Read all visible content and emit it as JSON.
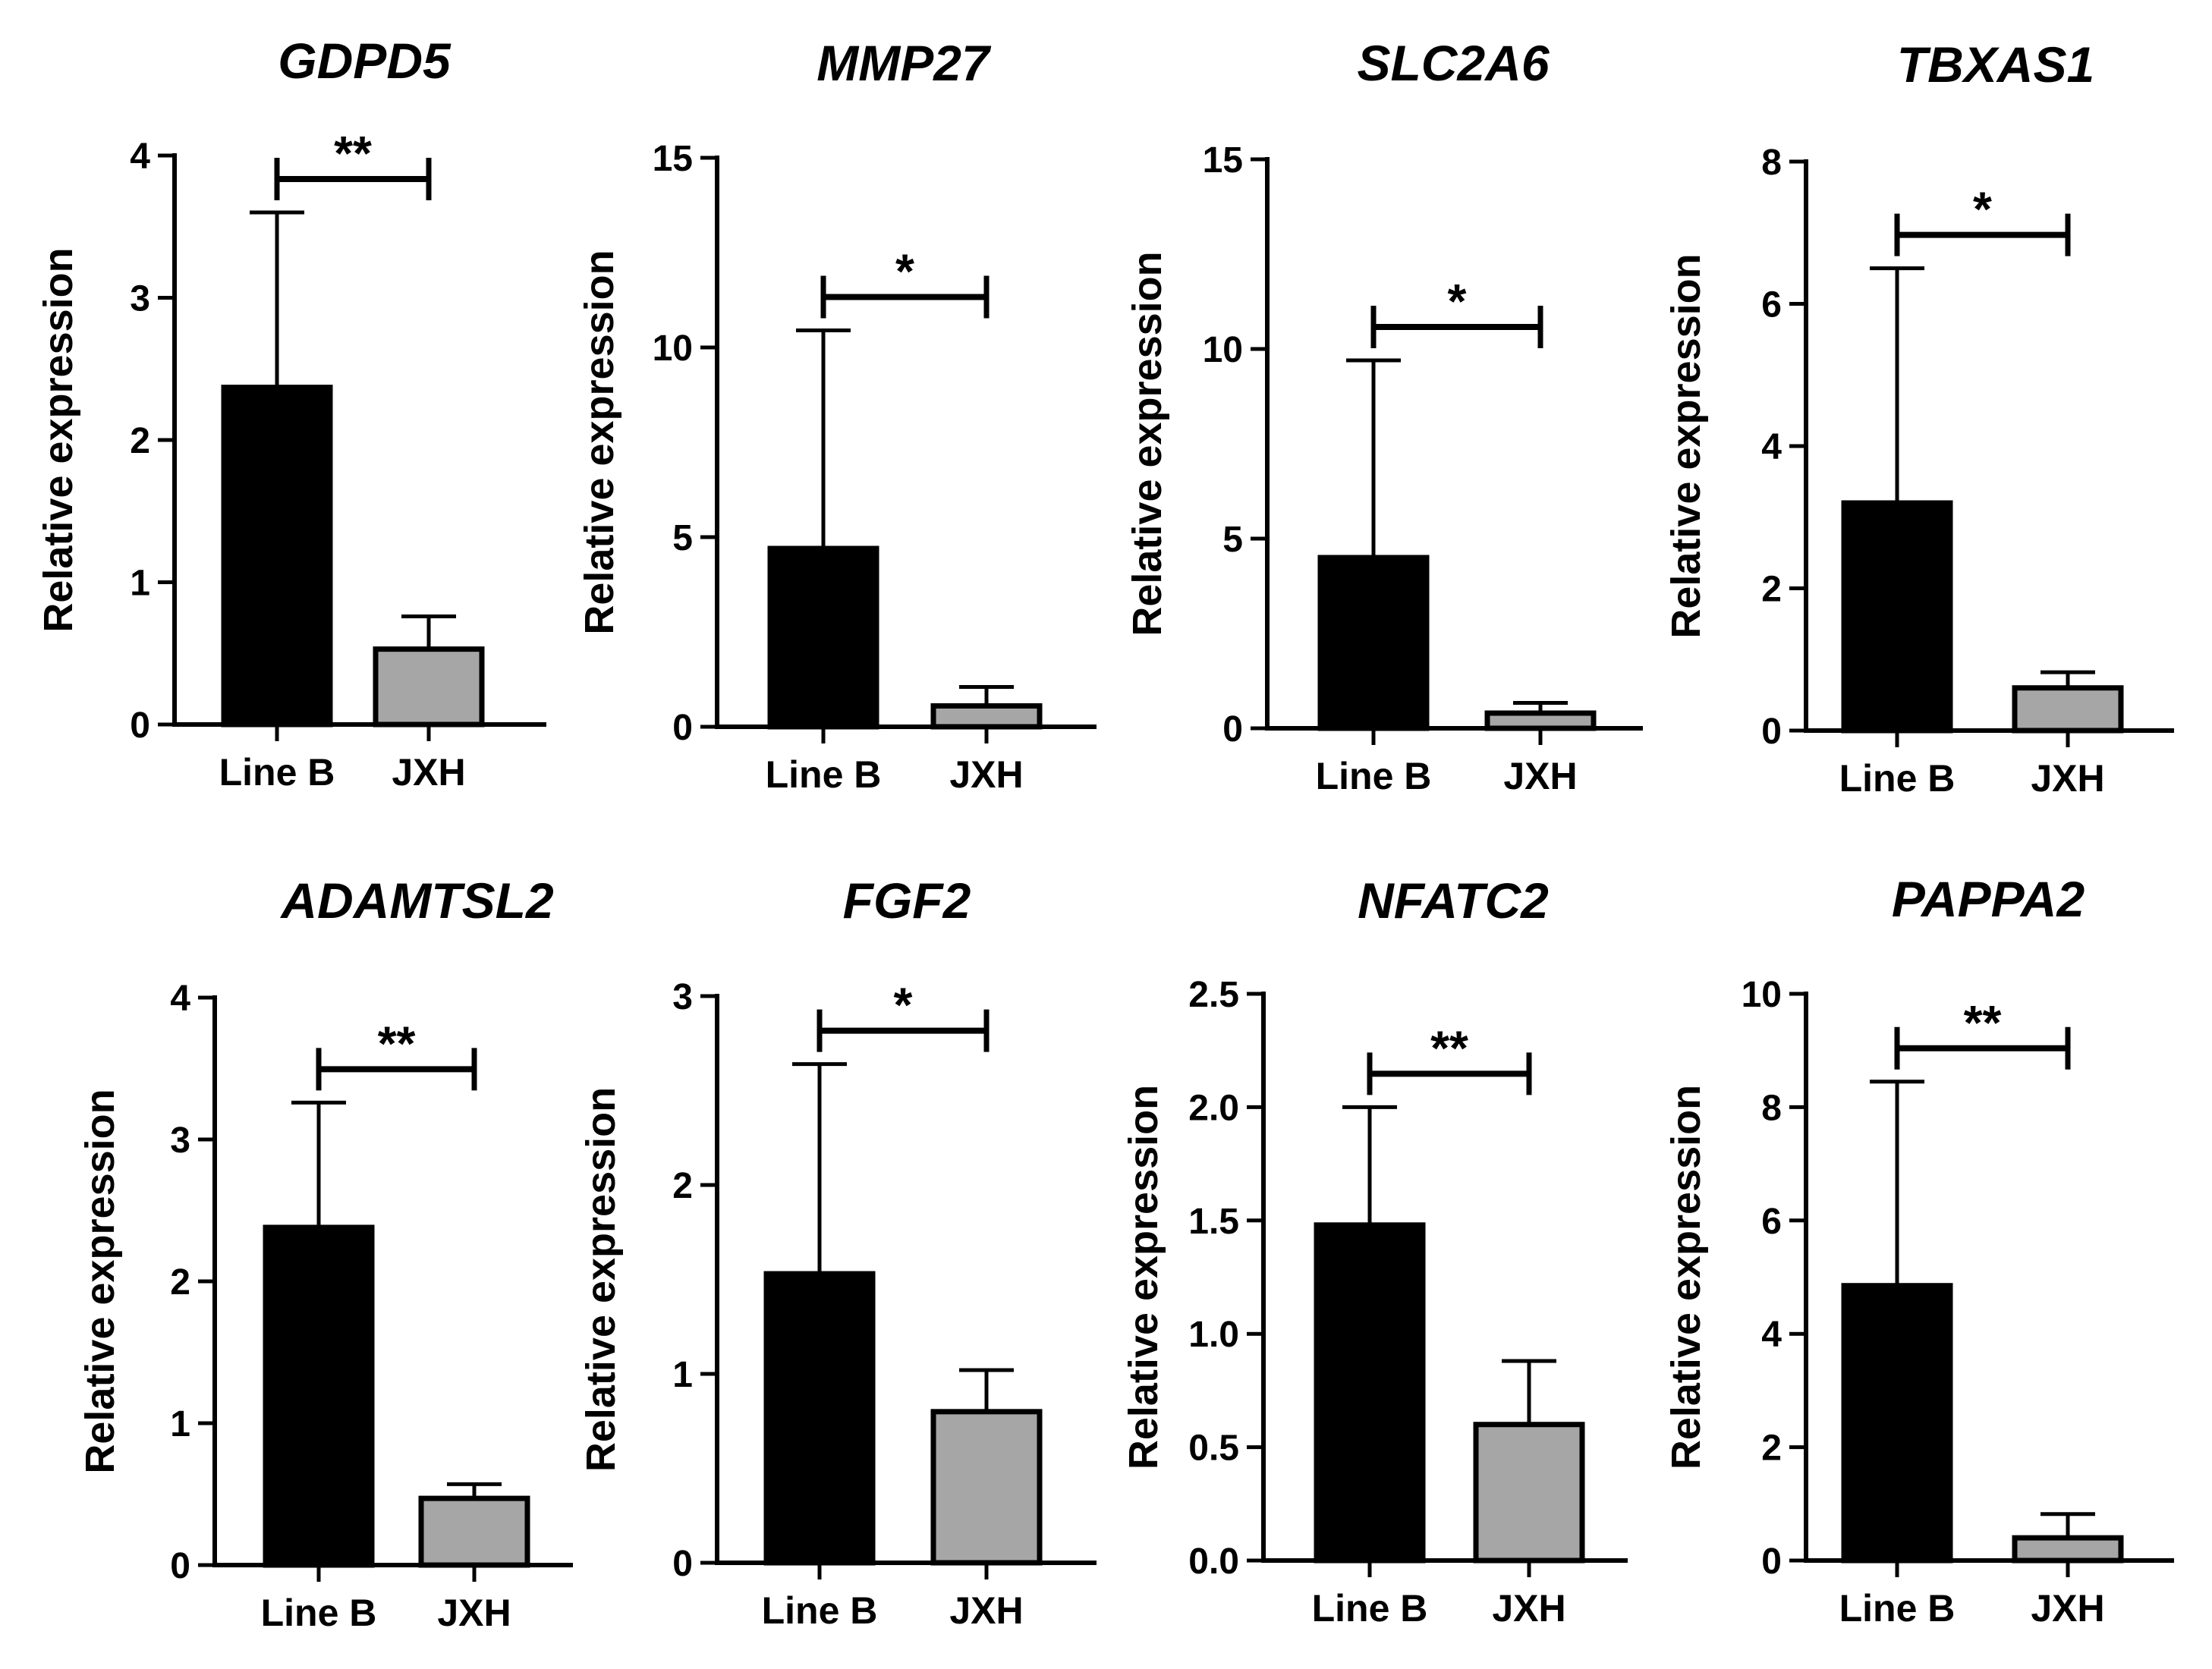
{
  "chart_data": [
    {
      "type": "bar",
      "title": "GDPD5",
      "categories": [
        "Line B",
        "JXH"
      ],
      "values": [
        2.37,
        0.53
      ],
      "errors": [
        1.23,
        0.23
      ],
      "ylabel": "Relative expression",
      "ylim": [
        0,
        4
      ],
      "yticks": [
        "0",
        "1",
        "2",
        "3",
        "4"
      ],
      "significance": "**",
      "colors": [
        "#000000",
        "#a6a6a6"
      ]
    },
    {
      "type": "bar",
      "title": "MMP27",
      "categories": [
        "Line B",
        "JXH"
      ],
      "values": [
        4.7,
        0.55
      ],
      "errors": [
        5.75,
        0.5
      ],
      "ylabel": "Relative expression",
      "ylim": [
        0,
        15
      ],
      "yticks": [
        "0",
        "5",
        "10",
        "15"
      ],
      "significance": "*",
      "colors": [
        "#000000",
        "#a6a6a6"
      ]
    },
    {
      "type": "bar",
      "title": "SLC2A6",
      "categories": [
        "Line B",
        "JXH"
      ],
      "values": [
        4.5,
        0.4
      ],
      "errors": [
        5.2,
        0.27
      ],
      "ylabel": "Relative expression",
      "ylim": [
        0,
        15
      ],
      "yticks": [
        "0",
        "5",
        "10",
        "15"
      ],
      "significance": "*",
      "colors": [
        "#000000",
        "#a6a6a6"
      ]
    },
    {
      "type": "bar",
      "title": "TBXAS1",
      "categories": [
        "Line B",
        "JXH"
      ],
      "values": [
        3.2,
        0.6
      ],
      "errors": [
        3.3,
        0.22
      ],
      "ylabel": "Relative expression",
      "ylim": [
        0,
        8
      ],
      "yticks": [
        "0",
        "2",
        "4",
        "6",
        "8"
      ],
      "significance": "*",
      "colors": [
        "#000000",
        "#a6a6a6"
      ]
    },
    {
      "type": "bar",
      "title": "ADAMTSL2",
      "categories": [
        "Line B",
        "JXH"
      ],
      "values": [
        2.38,
        0.47
      ],
      "errors": [
        0.88,
        0.1
      ],
      "ylabel": "Relative expression",
      "ylim": [
        0,
        4
      ],
      "yticks": [
        "0",
        "1",
        "2",
        "3",
        "4"
      ],
      "significance": "**",
      "colors": [
        "#000000",
        "#a6a6a6"
      ]
    },
    {
      "type": "bar",
      "title": "FGF2",
      "categories": [
        "Line B",
        "JXH"
      ],
      "values": [
        1.53,
        0.8
      ],
      "errors": [
        1.11,
        0.22
      ],
      "ylabel": "Relative expression",
      "ylim": [
        0,
        3
      ],
      "yticks": [
        "0",
        "1",
        "2",
        "3"
      ],
      "significance": "*",
      "colors": [
        "#000000",
        "#a6a6a6"
      ]
    },
    {
      "type": "bar",
      "title": "NFATC2",
      "categories": [
        "Line B",
        "JXH"
      ],
      "values": [
        1.48,
        0.6
      ],
      "errors": [
        0.52,
        0.28
      ],
      "ylabel": "Relative expression",
      "ylim": [
        0,
        2.5
      ],
      "yticks": [
        "0.0",
        "0.5",
        "1.0",
        "1.5",
        "2.0",
        "2.5"
      ],
      "significance": "**",
      "colors": [
        "#000000",
        "#a6a6a6"
      ]
    },
    {
      "type": "bar",
      "title": "PAPPA2",
      "categories": [
        "Line B",
        "JXH"
      ],
      "values": [
        4.85,
        0.4
      ],
      "errors": [
        3.6,
        0.42
      ],
      "ylabel": "Relative expression",
      "ylim": [
        0,
        10
      ],
      "yticks": [
        "0",
        "2",
        "4",
        "6",
        "8",
        "10"
      ],
      "significance": "**",
      "colors": [
        "#000000",
        "#a6a6a6"
      ]
    }
  ]
}
